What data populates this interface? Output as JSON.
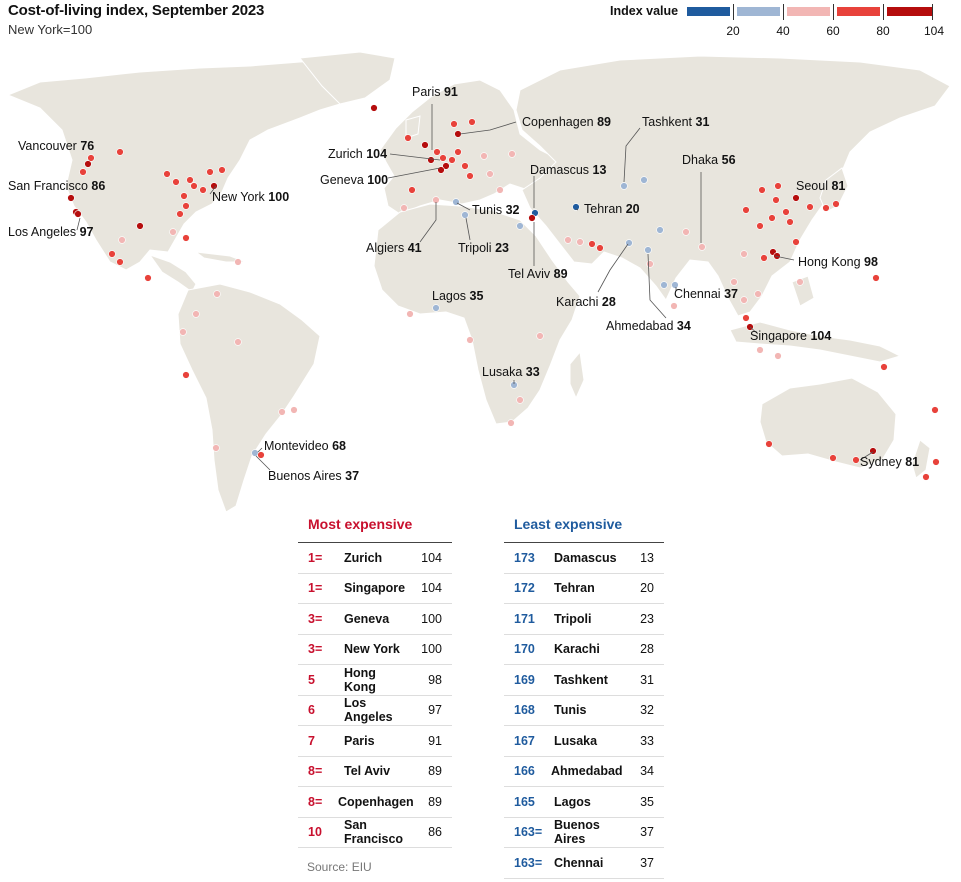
{
  "title": "Cost-of-living index, September 2023",
  "subtitle": "New York=100",
  "legend": {
    "title": "Index value",
    "ticks": [
      "20",
      "40",
      "60",
      "80",
      "104"
    ],
    "colors": [
      "#1f5b9e",
      "#9fb6d4",
      "#f2b6b4",
      "#e8423b",
      "#b50d0d"
    ]
  },
  "map_labels": [
    {
      "name": "Paris",
      "value": "91"
    },
    {
      "name": "Copenhagen",
      "value": "89"
    },
    {
      "name": "Tashkent",
      "value": "31"
    },
    {
      "name": "Vancouver",
      "value": "76"
    },
    {
      "name": "Zurich",
      "value": "104"
    },
    {
      "name": "Damascus",
      "value": "13"
    },
    {
      "name": "Dhaka",
      "value": "56"
    },
    {
      "name": "Geneva",
      "value": "100"
    },
    {
      "name": "San Francisco",
      "value": "86"
    },
    {
      "name": "Seoul",
      "value": "81"
    },
    {
      "name": "New York",
      "value": "100"
    },
    {
      "name": "Tunis",
      "value": "32"
    },
    {
      "name": "Tehran",
      "value": "20"
    },
    {
      "name": "Los Angeles",
      "value": "97"
    },
    {
      "name": "Algiers",
      "value": "41"
    },
    {
      "name": "Tripoli",
      "value": "23"
    },
    {
      "name": "Hong Kong",
      "value": "98"
    },
    {
      "name": "Tel Aviv",
      "value": "89"
    },
    {
      "name": "Karachi",
      "value": "28"
    },
    {
      "name": "Lagos",
      "value": "35"
    },
    {
      "name": "Chennai",
      "value": "37"
    },
    {
      "name": "Ahmedabad",
      "value": "34"
    },
    {
      "name": "Singapore",
      "value": "104"
    },
    {
      "name": "Lusaka",
      "value": "33"
    },
    {
      "name": "Montevideo",
      "value": "68"
    },
    {
      "name": "Buenos Aires",
      "value": "37"
    },
    {
      "name": "Sydney",
      "value": "81"
    }
  ],
  "most_expensive": {
    "heading": "Most expensive",
    "color": "#c8102e",
    "rows": [
      {
        "rank": "1=",
        "city": "Zurich",
        "value": "104"
      },
      {
        "rank": "1=",
        "city": "Singapore",
        "value": "104"
      },
      {
        "rank": "3=",
        "city": "Geneva",
        "value": "100"
      },
      {
        "rank": "3=",
        "city": "New York",
        "value": "100"
      },
      {
        "rank": "5",
        "city": "Hong Kong",
        "value": "98"
      },
      {
        "rank": "6",
        "city": "Los Angeles",
        "value": "97"
      },
      {
        "rank": "7",
        "city": "Paris",
        "value": "91"
      },
      {
        "rank": "8=",
        "city": "Tel Aviv",
        "value": "89"
      },
      {
        "rank": "8=",
        "city": "Copenhagen",
        "value": "89"
      },
      {
        "rank": "10",
        "city": "San Francisco",
        "value": "86"
      }
    ]
  },
  "least_expensive": {
    "heading": "Least expensive",
    "color": "#1f5b9e",
    "rows": [
      {
        "rank": "173",
        "city": "Damascus",
        "value": "13"
      },
      {
        "rank": "172",
        "city": "Tehran",
        "value": "20"
      },
      {
        "rank": "171",
        "city": "Tripoli",
        "value": "23"
      },
      {
        "rank": "170",
        "city": "Karachi",
        "value": "28"
      },
      {
        "rank": "169",
        "city": "Tashkent",
        "value": "31"
      },
      {
        "rank": "168",
        "city": "Tunis",
        "value": "32"
      },
      {
        "rank": "167",
        "city": "Lusaka",
        "value": "33"
      },
      {
        "rank": "166",
        "city": "Ahmedabad",
        "value": "34"
      },
      {
        "rank": "165",
        "city": "Lagos",
        "value": "35"
      },
      {
        "rank": "163=",
        "city": "Buenos Aires",
        "value": "37"
      },
      {
        "rank": "163=",
        "city": "Chennai",
        "value": "37"
      }
    ]
  },
  "source": "Source: EIU"
}
